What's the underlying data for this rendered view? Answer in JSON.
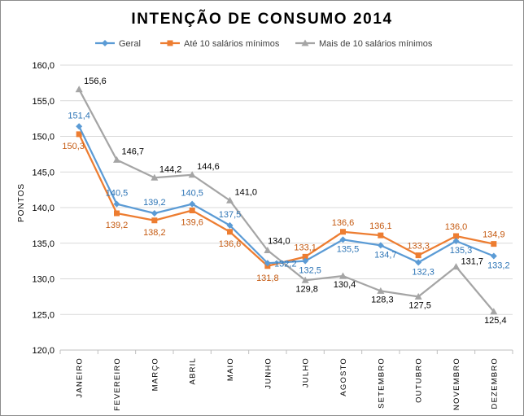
{
  "chart_data": {
    "type": "line",
    "title": "INTENÇÃO DE CONSUMO 2014",
    "ylabel": "PONTOS",
    "xlabel": "",
    "ylim": [
      120,
      160
    ],
    "yticks": [
      "120,0",
      "125,0",
      "130,0",
      "135,0",
      "140,0",
      "145,0",
      "150,0",
      "155,0",
      "160,0"
    ],
    "ytick_values": [
      120,
      125,
      130,
      135,
      140,
      145,
      150,
      155,
      160
    ],
    "categories": [
      "JANEIRO",
      "FEVEREIRO",
      "MARÇO",
      "ABRIL",
      "MAIO",
      "JUNHO",
      "JULHO",
      "AGOSTO",
      "SETEMBRO",
      "OUTUBRO",
      "NOVEMBRO",
      "DEZEMBRO"
    ],
    "grid": true,
    "legend_position": "top",
    "series": [
      {
        "name": "Geral",
        "color": "#5b9bd5",
        "marker": "diamond",
        "values": [
          151.4,
          140.5,
          139.2,
          140.5,
          137.5,
          132.2,
          132.5,
          135.5,
          134.7,
          132.3,
          135.3,
          133.2
        ],
        "labels": [
          "151,4",
          "140,5",
          "139,2",
          "140,5",
          "137,5",
          "132,2",
          "132,5",
          "135,5",
          "134,7",
          "132,3",
          "135,3",
          "133,2"
        ]
      },
      {
        "name": "Até 10 salários mínimos",
        "color": "#ed7d31",
        "marker": "square",
        "values": [
          150.3,
          139.2,
          138.2,
          139.6,
          136.6,
          131.8,
          133.1,
          136.6,
          136.1,
          133.3,
          136.0,
          134.9
        ],
        "labels": [
          "150,3",
          "139,2",
          "138,2",
          "139,6",
          "136,6",
          "131,8",
          "133,1",
          "136,6",
          "136,1",
          "133,3",
          "136,0",
          "134,9"
        ]
      },
      {
        "name": "Mais de 10 salários mínimos",
        "color": "#a5a5a5",
        "marker": "triangle",
        "values": [
          156.6,
          146.7,
          144.2,
          144.6,
          141.0,
          134.0,
          129.8,
          130.4,
          128.3,
          127.5,
          131.7,
          125.4
        ],
        "labels": [
          "156,6",
          "146,7",
          "144,2",
          "144,6",
          "141,0",
          "134,0",
          "129,8",
          "130,4",
          "128,3",
          "127,5",
          "131,7",
          "125,4"
        ]
      }
    ]
  }
}
